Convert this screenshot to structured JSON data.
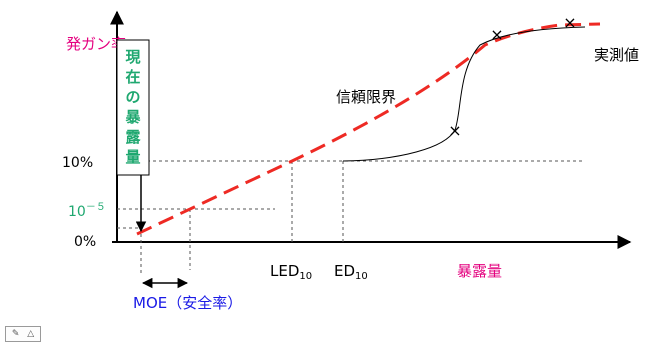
{
  "colors": {
    "axis": "#000000",
    "red_dash": "#ee2a24",
    "magenta": "#e4007f",
    "green": "#1fa870",
    "blue": "#1a1ae6",
    "text": "#000000",
    "guide": "#555555"
  },
  "labels": {
    "y_axis_title": "発ガン率",
    "x_axis_title": "暴露量",
    "measured": "実測値",
    "confidence": "信頼限界",
    "box_text": [
      "現",
      "在",
      "の",
      "暴",
      "露",
      "量"
    ],
    "tick_10pct": "10%",
    "tick_1e5_base": "10",
    "tick_1e5_exp": "－５",
    "tick_0pct": "0%",
    "led_base": "LED",
    "led_sub": "10",
    "ed_base": "ED",
    "ed_sub": "10",
    "moe": "MOE（安全率）",
    "marker": "×"
  },
  "icons": {
    "corner_left": "pencil-icon",
    "corner_right": "triangle-icon"
  },
  "corner": {
    "left_glyph": "✎",
    "right_glyph": "△"
  }
}
